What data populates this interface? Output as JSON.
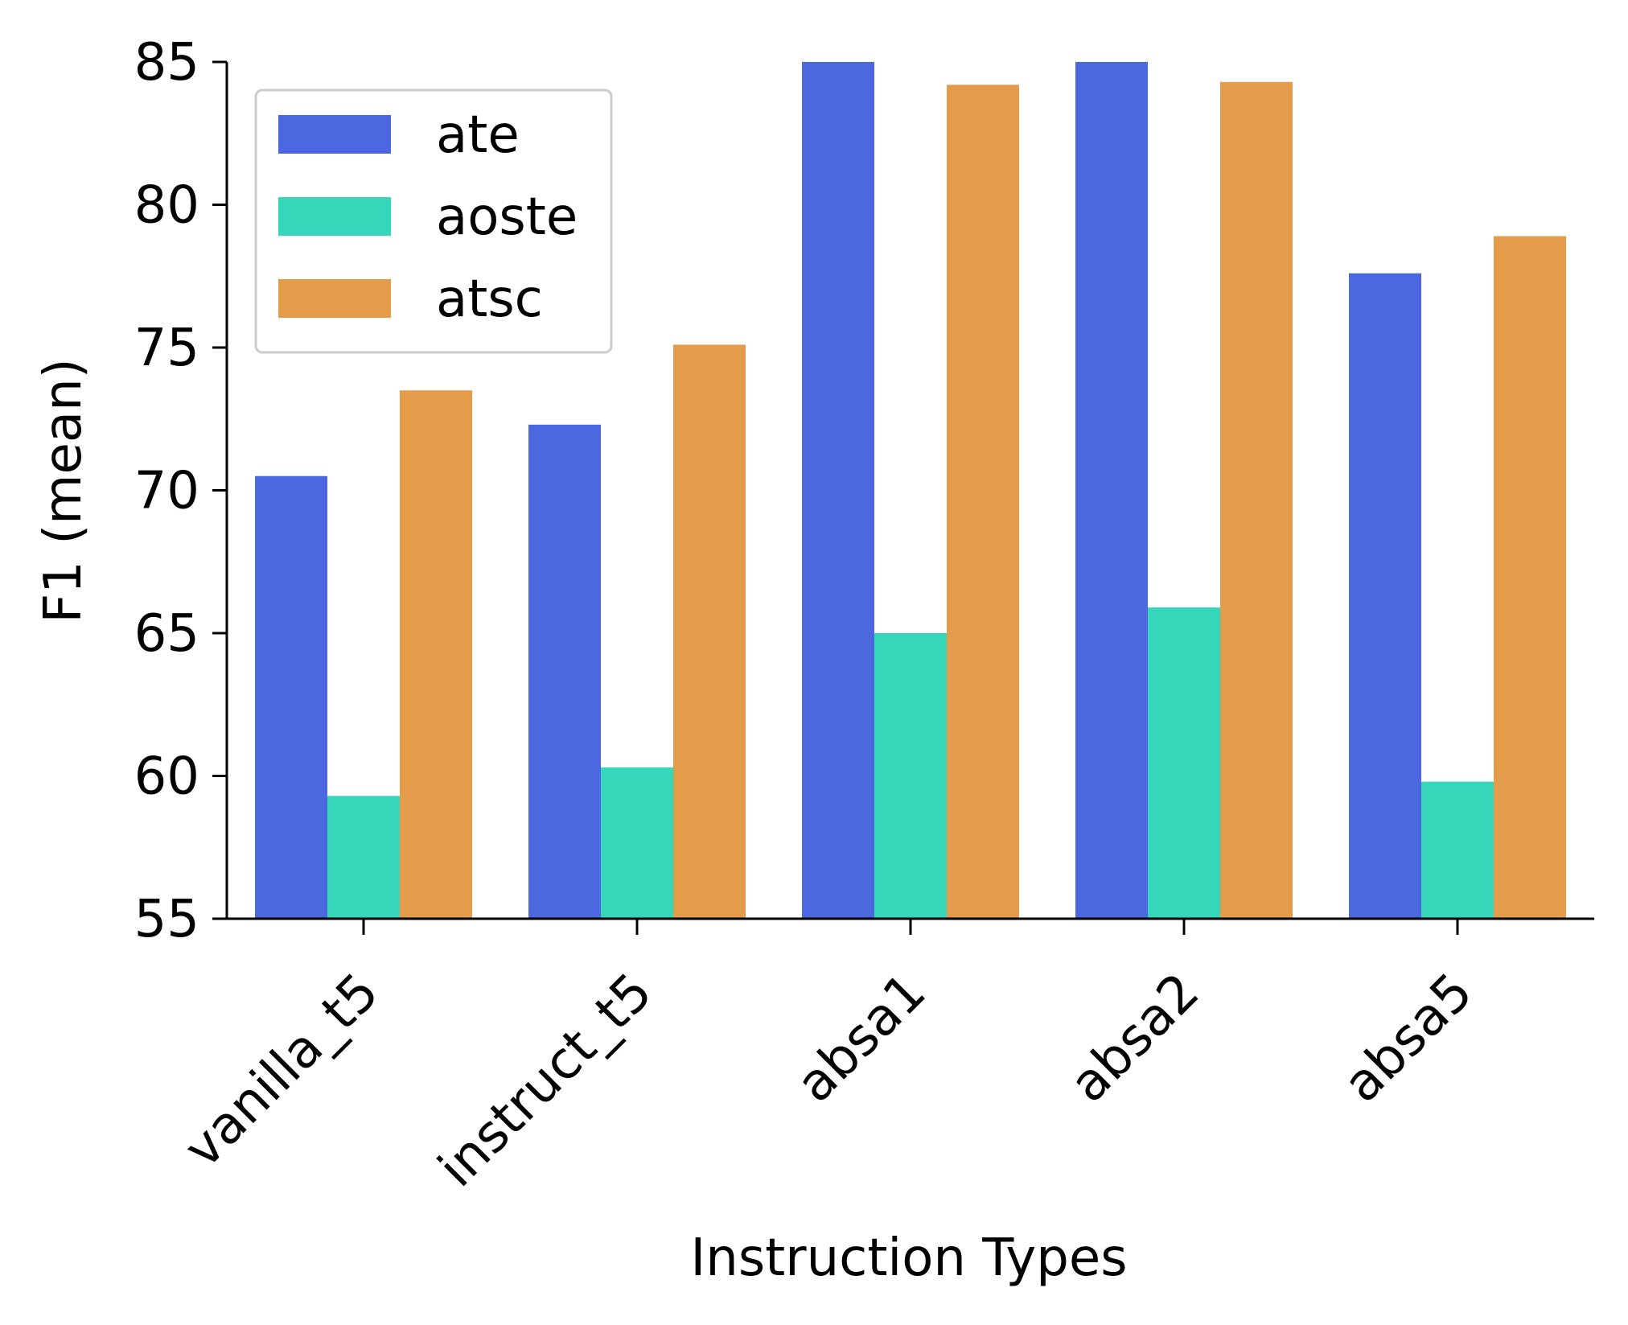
{
  "chart_data": {
    "type": "bar",
    "title": "",
    "xlabel": "Instruction Types",
    "ylabel": "F1 (mean)",
    "ylim": [
      55,
      85
    ],
    "yticks": [
      "55",
      "60",
      "65",
      "70",
      "75",
      "80",
      "85"
    ],
    "grid": false,
    "legend_position": "top-left",
    "categories": [
      "vanilla_t5",
      "instruct_t5",
      "absa1",
      "absa2",
      "absa5"
    ],
    "series": [
      {
        "name": "ate",
        "color": "#4c68e0",
        "values": [
          70.5,
          72.3,
          85.0,
          85.0,
          77.6
        ]
      },
      {
        "name": "aoste",
        "color": "#36d6bb",
        "values": [
          59.3,
          60.3,
          65.0,
          65.9,
          59.8
        ]
      },
      {
        "name": "atsc",
        "color": "#e59c4a",
        "values": [
          73.5,
          75.1,
          84.2,
          84.3,
          78.9
        ]
      }
    ]
  }
}
